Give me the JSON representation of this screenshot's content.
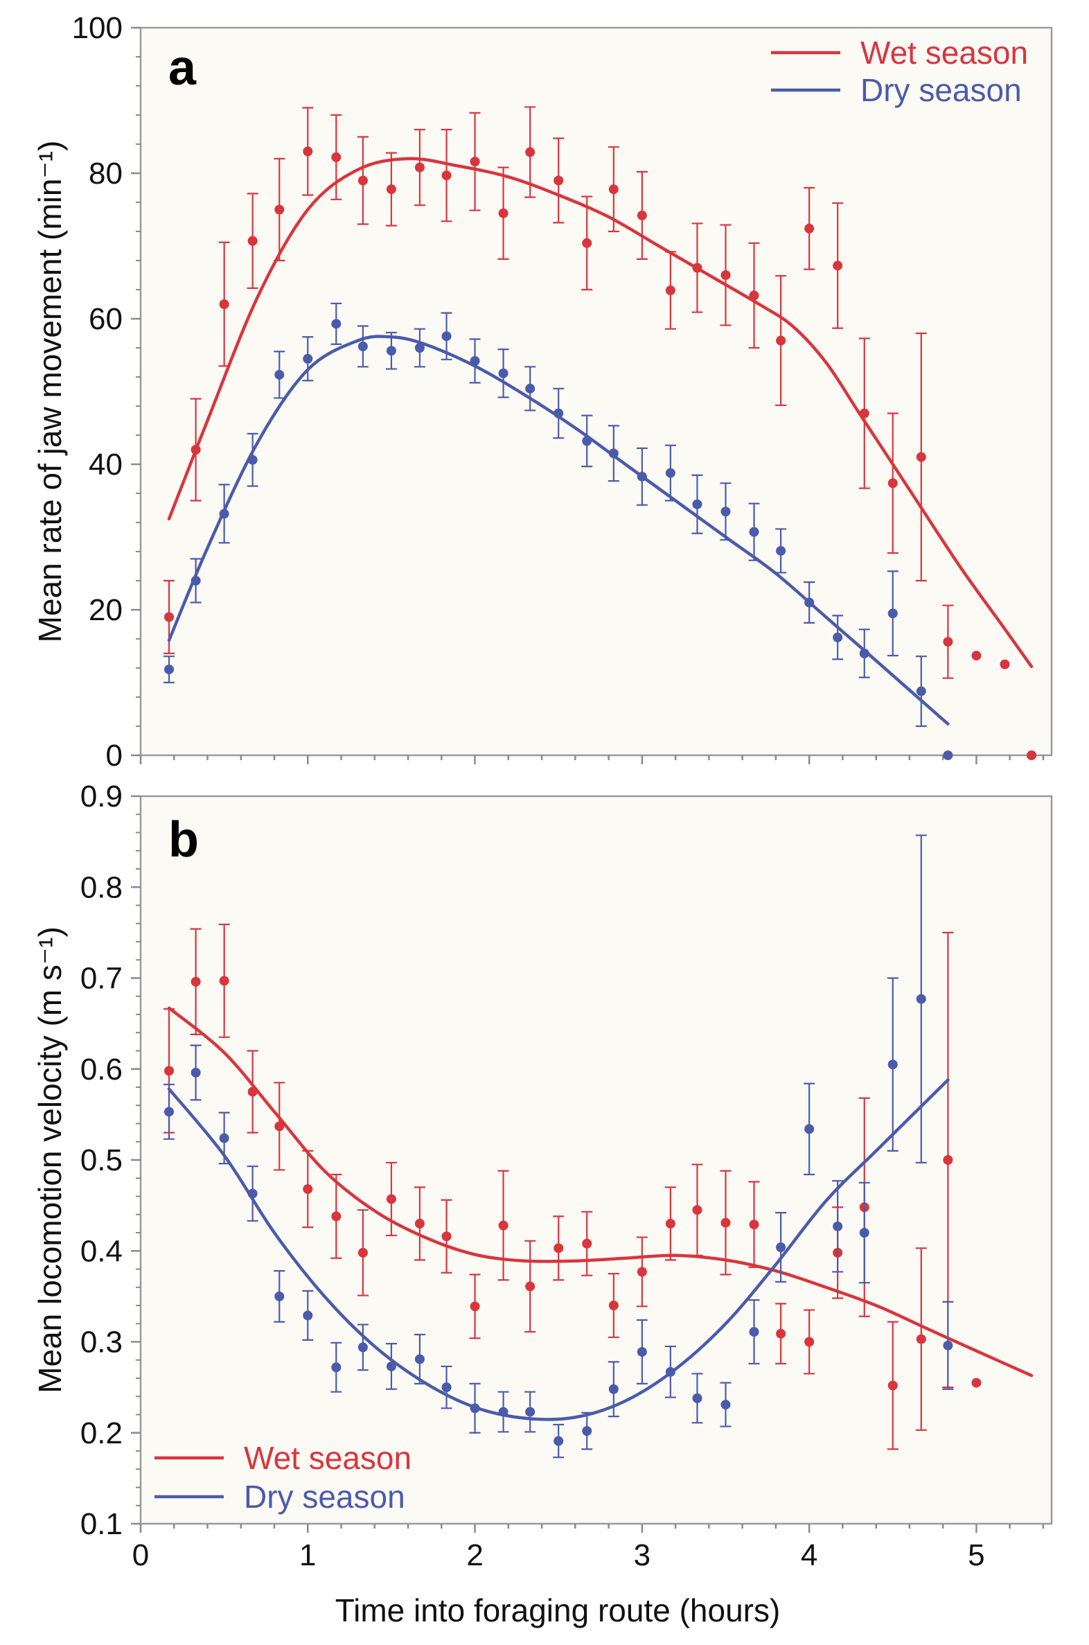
{
  "colors": {
    "wet": "#d9353d",
    "dry": "#4a5bab"
  },
  "xlabel": "Time into foraging route (hours)",
  "legend": {
    "wet": "Wet season",
    "dry": "Dry season"
  },
  "chart_data": [
    {
      "type": "scatter",
      "panel_label": "a",
      "ylabel": "Mean rate of jaw movement (min⁻¹)",
      "xlim": [
        0,
        5.45
      ],
      "ylim": [
        0,
        100
      ],
      "x_ticks": [
        0,
        1,
        2,
        3,
        4,
        5
      ],
      "y_ticks": [
        0,
        20,
        40,
        60,
        80,
        100
      ],
      "legend_position": "top-right",
      "series": [
        {
          "name": "Wet season",
          "color_key": "wet",
          "points": [
            {
              "x": 0.17,
              "y": 19.0,
              "err": 5.0
            },
            {
              "x": 0.33,
              "y": 42.0,
              "err": 7.0
            },
            {
              "x": 0.5,
              "y": 62.0,
              "err": 8.5
            },
            {
              "x": 0.67,
              "y": 70.7,
              "err": 6.5
            },
            {
              "x": 0.83,
              "y": 75.0,
              "err": 7.0
            },
            {
              "x": 1.0,
              "y": 83.0,
              "err": 6.0
            },
            {
              "x": 1.17,
              "y": 82.2,
              "err": 5.8
            },
            {
              "x": 1.33,
              "y": 79.0,
              "err": 6.0
            },
            {
              "x": 1.5,
              "y": 77.8,
              "err": 5.0
            },
            {
              "x": 1.67,
              "y": 80.8,
              "err": 5.2
            },
            {
              "x": 1.83,
              "y": 79.7,
              "err": 6.3
            },
            {
              "x": 2.0,
              "y": 81.6,
              "err": 6.7
            },
            {
              "x": 2.17,
              "y": 74.5,
              "err": 6.3
            },
            {
              "x": 2.33,
              "y": 82.9,
              "err": 6.2
            },
            {
              "x": 2.5,
              "y": 79.0,
              "err": 5.8
            },
            {
              "x": 2.67,
              "y": 70.4,
              "err": 6.4
            },
            {
              "x": 2.83,
              "y": 77.8,
              "err": 5.8
            },
            {
              "x": 3.0,
              "y": 74.2,
              "err": 6.0
            },
            {
              "x": 3.17,
              "y": 63.9,
              "err": 5.3
            },
            {
              "x": 3.33,
              "y": 67.0,
              "err": 6.1
            },
            {
              "x": 3.5,
              "y": 66.0,
              "err": 6.9
            },
            {
              "x": 3.67,
              "y": 63.2,
              "err": 7.2
            },
            {
              "x": 3.83,
              "y": 57.0,
              "err": 8.9
            },
            {
              "x": 4.0,
              "y": 72.4,
              "err": 5.6
            },
            {
              "x": 4.17,
              "y": 67.3,
              "err": 8.6
            },
            {
              "x": 4.33,
              "y": 47.0,
              "err": 10.3
            },
            {
              "x": 4.5,
              "y": 37.4,
              "err": 9.6
            },
            {
              "x": 4.67,
              "y": 41.0,
              "err": 17.0
            },
            {
              "x": 4.83,
              "y": 15.6,
              "err": 5.0
            },
            {
              "x": 5.0,
              "y": 13.7
            },
            {
              "x": 5.17,
              "y": 12.5
            },
            {
              "x": 5.33,
              "y": 0.0
            }
          ],
          "trend": {
            "x": [
              0.17,
              0.4,
              0.7,
              1.0,
              1.3,
              1.6,
              1.9,
              2.2,
              2.5,
              2.8,
              3.1,
              3.4,
              3.7,
              3.9,
              4.1,
              4.3,
              4.6,
              4.9,
              5.15,
              5.33
            ],
            "y": [
              32.5,
              46.0,
              63.0,
              75.0,
              80.5,
              82.0,
              81.0,
              79.5,
              77.0,
              74.0,
              70.0,
              66.0,
              62.0,
              59.0,
              54.0,
              47.0,
              36.5,
              26.0,
              18.0,
              12.2
            ]
          }
        },
        {
          "name": "Dry season",
          "color_key": "dry",
          "points": [
            {
              "x": 0.17,
              "y": 11.8,
              "err": 1.8
            },
            {
              "x": 0.33,
              "y": 24.0,
              "err": 3.0
            },
            {
              "x": 0.5,
              "y": 33.2,
              "err": 4.0
            },
            {
              "x": 0.67,
              "y": 40.6,
              "err": 3.6
            },
            {
              "x": 0.83,
              "y": 52.3,
              "err": 3.2
            },
            {
              "x": 1.0,
              "y": 54.5,
              "err": 3.0
            },
            {
              "x": 1.17,
              "y": 59.3,
              "err": 2.8
            },
            {
              "x": 1.33,
              "y": 56.2,
              "err": 2.8
            },
            {
              "x": 1.5,
              "y": 55.6,
              "err": 2.5
            },
            {
              "x": 1.67,
              "y": 56.0,
              "err": 2.6
            },
            {
              "x": 1.83,
              "y": 57.6,
              "err": 3.2
            },
            {
              "x": 2.0,
              "y": 54.2,
              "err": 3.0
            },
            {
              "x": 2.17,
              "y": 52.5,
              "err": 3.3
            },
            {
              "x": 2.33,
              "y": 50.4,
              "err": 3.0
            },
            {
              "x": 2.5,
              "y": 47.0,
              "err": 3.4
            },
            {
              "x": 2.67,
              "y": 43.2,
              "err": 3.5
            },
            {
              "x": 2.83,
              "y": 41.5,
              "err": 3.8
            },
            {
              "x": 3.0,
              "y": 38.3,
              "err": 3.9
            },
            {
              "x": 3.17,
              "y": 38.8,
              "err": 3.8
            },
            {
              "x": 3.33,
              "y": 34.5,
              "err": 4.0
            },
            {
              "x": 3.5,
              "y": 33.5,
              "err": 3.9
            },
            {
              "x": 3.67,
              "y": 30.7,
              "err": 3.9
            },
            {
              "x": 3.83,
              "y": 28.1,
              "err": 3.0
            },
            {
              "x": 4.0,
              "y": 21.0,
              "err": 2.8
            },
            {
              "x": 4.17,
              "y": 16.2,
              "err": 3.0
            },
            {
              "x": 4.33,
              "y": 14.0,
              "err": 3.3
            },
            {
              "x": 4.5,
              "y": 19.5,
              "err": 5.8
            },
            {
              "x": 4.67,
              "y": 8.8,
              "err": 4.8
            },
            {
              "x": 4.83,
              "y": 0.0
            }
          ],
          "trend": {
            "x": [
              0.17,
              0.4,
              0.7,
              1.0,
              1.3,
              1.5,
              1.7,
              2.0,
              2.3,
              2.6,
              2.9,
              3.2,
              3.5,
              3.8,
              4.1,
              4.4,
              4.83
            ],
            "y": [
              15.8,
              28.5,
              43.0,
              53.0,
              57.0,
              57.5,
              56.5,
              53.5,
              49.5,
              45.0,
              40.0,
              35.0,
              30.0,
              25.0,
              19.0,
              13.0,
              4.3
            ]
          }
        }
      ]
    },
    {
      "type": "scatter",
      "panel_label": "b",
      "ylabel": "Mean locomotion velocity (m s⁻¹)",
      "xlim": [
        0,
        5.45
      ],
      "ylim": [
        0.1,
        0.9
      ],
      "x_ticks": [
        0,
        1,
        2,
        3,
        4,
        5
      ],
      "y_ticks": [
        0.1,
        0.2,
        0.3,
        0.4,
        0.5,
        0.6,
        0.7,
        0.8,
        0.9
      ],
      "legend_position": "bottom-left",
      "series": [
        {
          "name": "Wet season",
          "color_key": "wet",
          "points": [
            {
              "x": 0.17,
              "y": 0.598,
              "err": 0.068
            },
            {
              "x": 0.33,
              "y": 0.696,
              "err": 0.058
            },
            {
              "x": 0.5,
              "y": 0.697,
              "err": 0.062
            },
            {
              "x": 0.67,
              "y": 0.575,
              "err": 0.045
            },
            {
              "x": 0.83,
              "y": 0.537,
              "err": 0.048
            },
            {
              "x": 1.0,
              "y": 0.468,
              "err": 0.042
            },
            {
              "x": 1.17,
              "y": 0.438,
              "err": 0.046
            },
            {
              "x": 1.33,
              "y": 0.398,
              "err": 0.047
            },
            {
              "x": 1.5,
              "y": 0.457,
              "err": 0.04
            },
            {
              "x": 1.67,
              "y": 0.43,
              "err": 0.04
            },
            {
              "x": 1.83,
              "y": 0.416,
              "err": 0.04
            },
            {
              "x": 2.0,
              "y": 0.339,
              "err": 0.035
            },
            {
              "x": 2.17,
              "y": 0.428,
              "err": 0.06
            },
            {
              "x": 2.33,
              "y": 0.361,
              "err": 0.05
            },
            {
              "x": 2.5,
              "y": 0.403,
              "err": 0.035
            },
            {
              "x": 2.67,
              "y": 0.408,
              "err": 0.035
            },
            {
              "x": 2.83,
              "y": 0.34,
              "err": 0.035
            },
            {
              "x": 3.0,
              "y": 0.377,
              "err": 0.038
            },
            {
              "x": 3.17,
              "y": 0.43,
              "err": 0.04
            },
            {
              "x": 3.33,
              "y": 0.445,
              "err": 0.05
            },
            {
              "x": 3.5,
              "y": 0.431,
              "err": 0.057
            },
            {
              "x": 3.67,
              "y": 0.429,
              "err": 0.047
            },
            {
              "x": 3.83,
              "y": 0.309,
              "err": 0.033
            },
            {
              "x": 4.0,
              "y": 0.3,
              "err": 0.035
            },
            {
              "x": 4.17,
              "y": 0.398,
              "err": 0.05
            },
            {
              "x": 4.33,
              "y": 0.448,
              "err": 0.12
            },
            {
              "x": 4.5,
              "y": 0.252,
              "err": 0.07
            },
            {
              "x": 4.67,
              "y": 0.303,
              "err": 0.1
            },
            {
              "x": 4.83,
              "y": 0.5,
              "err": 0.25
            },
            {
              "x": 5.0,
              "y": 0.255
            }
          ],
          "trend": {
            "x": [
              0.17,
              0.5,
              0.8,
              1.1,
              1.4,
              1.7,
              2.0,
              2.3,
              2.6,
              2.9,
              3.2,
              3.5,
              3.8,
              4.1,
              4.4,
              4.7,
              5.0,
              5.33
            ],
            "y": [
              0.667,
              0.618,
              0.553,
              0.488,
              0.444,
              0.415,
              0.396,
              0.389,
              0.389,
              0.392,
              0.395,
              0.39,
              0.378,
              0.36,
              0.34,
              0.315,
              0.29,
              0.263
            ]
          }
        },
        {
          "name": "Dry season",
          "color_key": "dry",
          "points": [
            {
              "x": 0.17,
              "y": 0.553,
              "err": 0.03
            },
            {
              "x": 0.33,
              "y": 0.596,
              "err": 0.03
            },
            {
              "x": 0.5,
              "y": 0.524,
              "err": 0.028
            },
            {
              "x": 0.67,
              "y": 0.463,
              "err": 0.03
            },
            {
              "x": 0.83,
              "y": 0.35,
              "err": 0.028
            },
            {
              "x": 1.0,
              "y": 0.329,
              "err": 0.027
            },
            {
              "x": 1.17,
              "y": 0.272,
              "err": 0.027
            },
            {
              "x": 1.33,
              "y": 0.294,
              "err": 0.025
            },
            {
              "x": 1.5,
              "y": 0.273,
              "err": 0.025
            },
            {
              "x": 1.67,
              "y": 0.281,
              "err": 0.027
            },
            {
              "x": 1.83,
              "y": 0.25,
              "err": 0.023
            },
            {
              "x": 2.0,
              "y": 0.227,
              "err": 0.027
            },
            {
              "x": 2.17,
              "y": 0.223,
              "err": 0.022
            },
            {
              "x": 2.33,
              "y": 0.223,
              "err": 0.022
            },
            {
              "x": 2.5,
              "y": 0.191,
              "err": 0.018
            },
            {
              "x": 2.67,
              "y": 0.202,
              "err": 0.02
            },
            {
              "x": 2.83,
              "y": 0.248,
              "err": 0.03
            },
            {
              "x": 3.0,
              "y": 0.289,
              "err": 0.035
            },
            {
              "x": 3.17,
              "y": 0.267,
              "err": 0.028
            },
            {
              "x": 3.33,
              "y": 0.238,
              "err": 0.027
            },
            {
              "x": 3.5,
              "y": 0.231,
              "err": 0.024
            },
            {
              "x": 3.67,
              "y": 0.311,
              "err": 0.035
            },
            {
              "x": 3.83,
              "y": 0.404,
              "err": 0.038
            },
            {
              "x": 4.0,
              "y": 0.534,
              "err": 0.05
            },
            {
              "x": 4.17,
              "y": 0.427,
              "err": 0.05
            },
            {
              "x": 4.33,
              "y": 0.42,
              "err": 0.055
            },
            {
              "x": 4.5,
              "y": 0.605,
              "err": 0.095
            },
            {
              "x": 4.67,
              "y": 0.677,
              "err": 0.18
            },
            {
              "x": 4.83,
              "y": 0.296,
              "err": 0.048
            }
          ],
          "trend": {
            "x": [
              0.17,
              0.5,
              0.8,
              1.1,
              1.4,
              1.7,
              2.0,
              2.3,
              2.6,
              2.9,
              3.2,
              3.5,
              3.8,
              4.1,
              4.4,
              4.83
            ],
            "y": [
              0.578,
              0.505,
              0.42,
              0.35,
              0.295,
              0.255,
              0.228,
              0.216,
              0.217,
              0.235,
              0.27,
              0.32,
              0.385,
              0.455,
              0.51,
              0.588
            ]
          }
        }
      ]
    }
  ]
}
